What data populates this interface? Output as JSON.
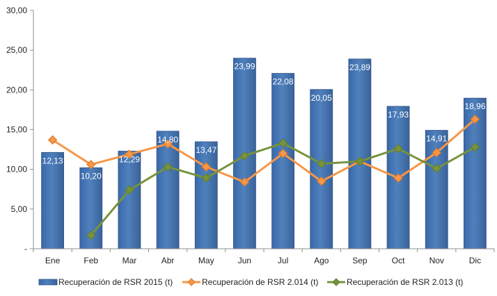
{
  "chart_data": {
    "type": "bar",
    "categories": [
      "Ene",
      "Feb",
      "Mar",
      "Abr",
      "May",
      "Jun",
      "Jul",
      "Ago",
      "Sep",
      "Oct",
      "Nov",
      "Dic"
    ],
    "ylim": [
      0,
      30
    ],
    "yticks": [
      0,
      5,
      10,
      15,
      20,
      25,
      30
    ],
    "ytick_labels": [
      "-",
      "5,00",
      "10,00",
      "15,00",
      "20,00",
      "25,00",
      "30,00"
    ],
    "grid": false,
    "legend_position": "bottom",
    "series": [
      {
        "name": "Recuperación de RSR 2015 (t)",
        "type": "bar",
        "color": "#4F81BD",
        "values": [
          12.13,
          10.2,
          12.29,
          14.8,
          13.47,
          23.99,
          22.08,
          20.05,
          23.89,
          17.93,
          14.91,
          18.96
        ],
        "labels": [
          "12,13",
          "10,20",
          "12,29",
          "14,80",
          "13,47",
          "23,99",
          "22,08",
          "20,05",
          "23,89",
          "17,93",
          "14,91",
          "18,96"
        ]
      },
      {
        "name": "Recuperación de RSR 2.014 (t)",
        "type": "line",
        "marker": "diamond",
        "color": "#F79646",
        "values": [
          13.7,
          10.6,
          11.9,
          13.2,
          10.3,
          8.4,
          12.0,
          8.5,
          11.0,
          8.9,
          12.1,
          16.3
        ]
      },
      {
        "name": "Recuperación de RSR 2.013 (t)",
        "type": "line",
        "marker": "diamond",
        "color": "#77933C",
        "values": [
          null,
          1.7,
          7.4,
          10.3,
          8.9,
          11.7,
          13.3,
          10.7,
          11.0,
          12.6,
          10.1,
          12.8
        ]
      }
    ]
  }
}
